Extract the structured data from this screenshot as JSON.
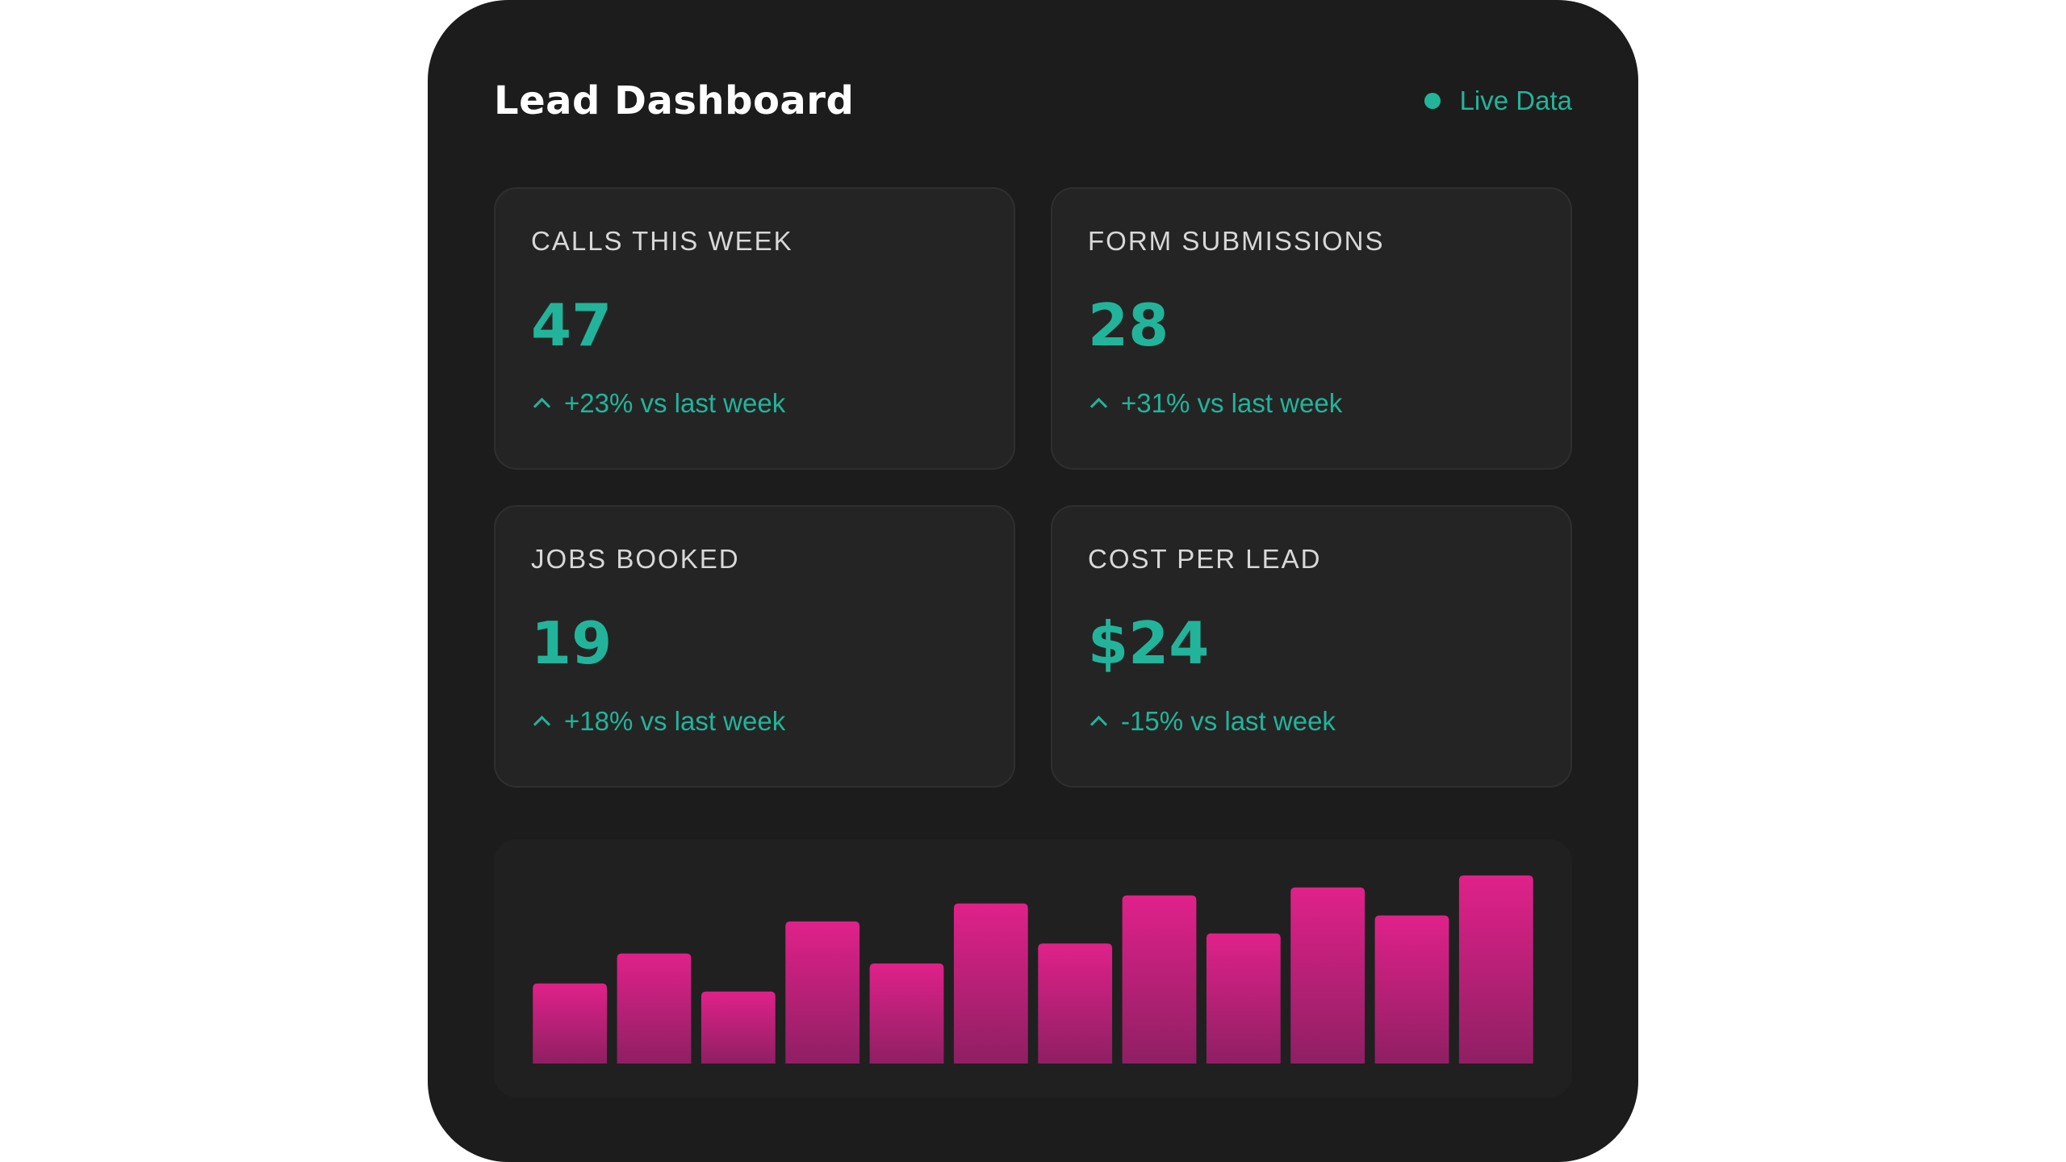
{
  "header": {
    "title": "Lead Dashboard",
    "status_label": "Live Data",
    "status_icon": "dot-icon"
  },
  "cards": [
    {
      "label": "CALLS THIS WEEK",
      "value": "47",
      "delta": "+23% vs last week",
      "icon": "chevron-up-icon"
    },
    {
      "label": "FORM SUBMISSIONS",
      "value": "28",
      "delta": "+31% vs last week",
      "icon": "chevron-up-icon"
    },
    {
      "label": "JOBS BOOKED",
      "value": "19",
      "delta": "+18% vs last week",
      "icon": "chevron-up-icon"
    },
    {
      "label": "COST PER LEAD",
      "value": "$24",
      "delta": "-15% vs last week",
      "icon": "chevron-up-icon"
    }
  ],
  "colors": {
    "accent": "#22b49a",
    "panel_bg": "#1c1c1c",
    "card_bg": "#242424",
    "bar_top": "#e0218a",
    "bar_bottom": "#8f1f63"
  },
  "chart_data": {
    "type": "bar",
    "values": [
      40,
      55,
      36,
      71,
      50,
      80,
      60,
      84,
      65,
      88,
      74,
      94
    ],
    "ylim": [
      0,
      100
    ],
    "grid": false,
    "legend": "none"
  }
}
